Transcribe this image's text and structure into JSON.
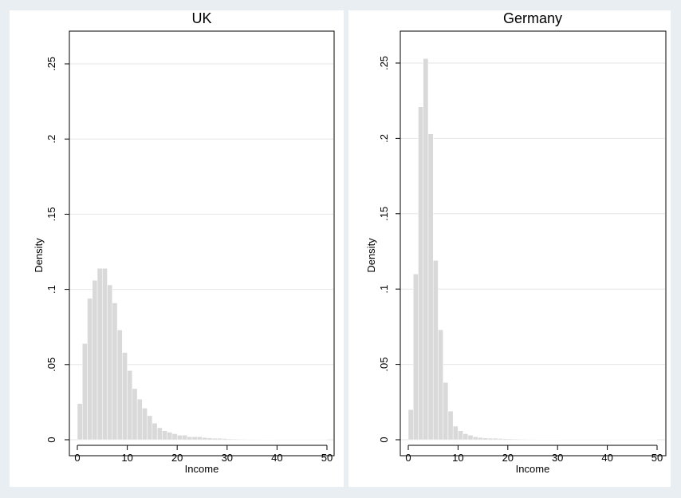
{
  "chart_data": [
    {
      "type": "bar",
      "title": "UK",
      "xlabel": "Income",
      "ylabel": "Density",
      "xlim": [
        0,
        50
      ],
      "ylim": [
        0,
        0.25
      ],
      "xticks": [
        0,
        10,
        20,
        30,
        40,
        50
      ],
      "xtick_labels": [
        "0",
        "10",
        "20",
        "30",
        "40",
        "50"
      ],
      "yticks": [
        0,
        0.05,
        0.1,
        0.15,
        0.2,
        0.25
      ],
      "ytick_labels": [
        "0",
        ".05",
        ".1",
        ".15",
        ".2",
        ".25"
      ],
      "grid": true,
      "bin_width": 1,
      "bin_starts": [
        0,
        1,
        2,
        3,
        4,
        5,
        6,
        7,
        8,
        9,
        10,
        11,
        12,
        13,
        14,
        15,
        16,
        17,
        18,
        19,
        20,
        21,
        22,
        23,
        24,
        25,
        26,
        27,
        28,
        29,
        30,
        31,
        32,
        33,
        34,
        35,
        36,
        37,
        38,
        39,
        40,
        41,
        42,
        43,
        44,
        45,
        46,
        47,
        48,
        49
      ],
      "values": [
        0.024,
        0.064,
        0.094,
        0.106,
        0.114,
        0.114,
        0.103,
        0.091,
        0.073,
        0.058,
        0.046,
        0.034,
        0.027,
        0.021,
        0.016,
        0.011,
        0.008,
        0.006,
        0.005,
        0.004,
        0.003,
        0.003,
        0.002,
        0.002,
        0.002,
        0.0015,
        0.0012,
        0.001,
        0.001,
        0.0008,
        0.0006,
        0.0005,
        0.0004,
        0.0004,
        0.0003,
        0.0003,
        0.0002,
        0.0002,
        0.0002,
        0.0001,
        0.0001,
        0.0001,
        0.0001,
        0.0001,
        0.0001,
        0.0001,
        0.0001,
        0.0001,
        0.0001,
        0.0001
      ]
    },
    {
      "type": "bar",
      "title": "Germany",
      "xlabel": "Income",
      "ylabel": "Density",
      "xlim": [
        0,
        50
      ],
      "ylim": [
        0,
        0.25
      ],
      "xticks": [
        0,
        10,
        20,
        30,
        40,
        50
      ],
      "xtick_labels": [
        "0",
        "10",
        "20",
        "30",
        "40",
        "50"
      ],
      "yticks": [
        0,
        0.05,
        0.1,
        0.15,
        0.2,
        0.25
      ],
      "ytick_labels": [
        "0",
        ".05",
        ".1",
        ".15",
        ".2",
        ".25"
      ],
      "grid": true,
      "bin_width": 1,
      "bin_starts": [
        0,
        1,
        2,
        3,
        4,
        5,
        6,
        7,
        8,
        9,
        10,
        11,
        12,
        13,
        14,
        15,
        16,
        17,
        18,
        19,
        20,
        21,
        22,
        23,
        24,
        25,
        26,
        27,
        28,
        29,
        30,
        31,
        32,
        33,
        34,
        35,
        36,
        37,
        38,
        39,
        40,
        41,
        42,
        43,
        44,
        45,
        46,
        47,
        48,
        49
      ],
      "values": [
        0.02,
        0.11,
        0.221,
        0.253,
        0.203,
        0.119,
        0.073,
        0.038,
        0.019,
        0.009,
        0.006,
        0.004,
        0.003,
        0.002,
        0.0015,
        0.0012,
        0.001,
        0.001,
        0.0008,
        0.0007,
        0.0006,
        0.0005,
        0.0004,
        0.0004,
        0.0003,
        0.0003,
        0.0002,
        0.0002,
        0.0002,
        0.0002,
        0.0001,
        0.0001,
        0.0001,
        0.0001,
        0.0001,
        0.0001,
        0.0001,
        0.0001,
        0.0001,
        0.0001,
        0.0001,
        0.0001,
        0.0001,
        0.0001,
        0.0001,
        0.0001,
        0.0001,
        0.0001,
        0.0001,
        0.0001
      ]
    }
  ]
}
